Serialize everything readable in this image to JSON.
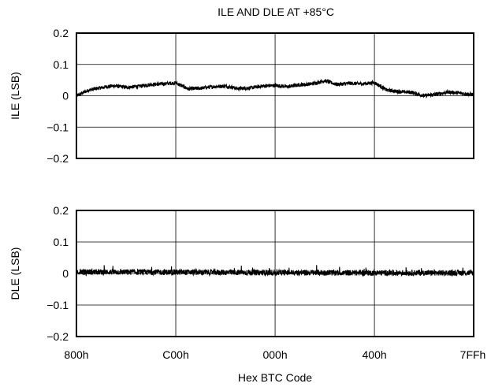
{
  "chart_data": {
    "type": "line",
    "title": "ILE AND DLE AT +85°C",
    "xlabel": "Hex BTC Code",
    "x_tick_labels": [
      "800h",
      "C00h",
      "000h",
      "400h",
      "7FFh"
    ],
    "grid": true,
    "line_color": "#000000",
    "panels": [
      {
        "name": "ile",
        "ylabel": "ILE (LSB)",
        "ylim": [
          -0.2,
          0.2
        ],
        "y_tick_labels": [
          "0.2",
          "0.1",
          "0",
          "−0.1",
          "−0.2"
        ],
        "y_ticks": [
          0.2,
          0.1,
          0,
          -0.1,
          -0.2
        ],
        "noise": 0.006,
        "x": [
          "800h",
          "880h",
          "900h",
          "980h",
          "A00h",
          "A80h",
          "B00h",
          "B80h",
          "C00h",
          "C80h",
          "D00h",
          "D80h",
          "E00h",
          "E80h",
          "F00h",
          "F80h",
          "000h",
          "080h",
          "100h",
          "180h",
          "200h",
          "280h",
          "300h",
          "380h",
          "400h",
          "480h",
          "500h",
          "580h",
          "600h",
          "680h",
          "700h",
          "7FFh"
        ],
        "values": [
          0.0,
          0.018,
          0.026,
          0.032,
          0.027,
          0.03,
          0.036,
          0.038,
          0.041,
          0.022,
          0.024,
          0.029,
          0.031,
          0.023,
          0.025,
          0.031,
          0.033,
          0.029,
          0.035,
          0.038,
          0.048,
          0.036,
          0.04,
          0.038,
          0.042,
          0.018,
          0.013,
          0.011,
          0.0,
          0.005,
          0.012,
          0.004
        ]
      },
      {
        "name": "dle",
        "ylabel": "DLE (LSB)",
        "ylim": [
          -0.2,
          0.2
        ],
        "y_tick_labels": [
          "0.2",
          "0.1",
          "0",
          "−0.1",
          "−0.2"
        ],
        "y_ticks": [
          0.2,
          0.1,
          0,
          -0.1,
          -0.2
        ],
        "noise": 0.009,
        "x": [
          "800h",
          "C00h",
          "000h",
          "400h",
          "7FFh"
        ],
        "values": [
          0.005,
          0.004,
          0.003,
          0.002,
          0.002
        ]
      }
    ]
  }
}
